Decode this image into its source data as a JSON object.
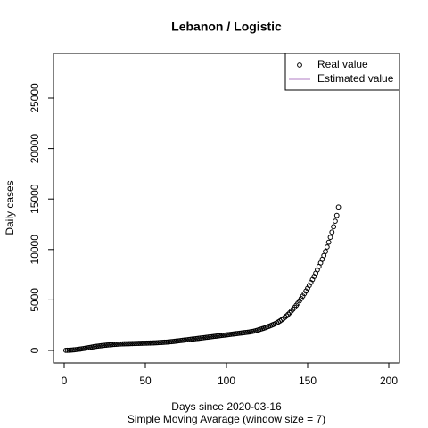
{
  "chart_data": {
    "type": "scatter",
    "title": "Lebanon / Logistic",
    "x_label": "Days since 2020-03-16",
    "subtitle": "Simple Moving Avarage (window size = 7)",
    "y_label": "Daily cases",
    "xlim": [
      -6.6,
      206.6
    ],
    "ylim": [
      -1237,
      29417
    ],
    "xticks": [
      0,
      50,
      100,
      150,
      200
    ],
    "yticks": [
      0,
      5000,
      10000,
      15000,
      20000,
      25000
    ],
    "legend_position": "topright",
    "legend": [
      {
        "label": "Real value",
        "marker": "circle",
        "color": "#000000"
      },
      {
        "label": "Estimated value",
        "marker": "line",
        "color": "#b07cc6"
      }
    ],
    "series": [
      {
        "name": "Real value",
        "color": "#000000",
        "x": [
          1,
          2,
          3,
          4,
          5,
          6,
          7,
          8,
          9,
          10,
          11,
          12,
          13,
          14,
          15,
          16,
          17,
          18,
          19,
          20,
          21,
          22,
          23,
          24,
          25,
          26,
          27,
          28,
          29,
          30,
          31,
          32,
          33,
          34,
          35,
          36,
          37,
          38,
          39,
          40,
          41,
          42,
          43,
          44,
          45,
          46,
          47,
          48,
          49,
          50,
          51,
          52,
          53,
          54,
          55,
          56,
          57,
          58,
          59,
          60,
          61,
          62,
          63,
          64,
          65,
          66,
          67,
          68,
          69,
          70,
          71,
          72,
          73,
          74,
          75,
          76,
          77,
          78,
          79,
          80,
          81,
          82,
          83,
          84,
          85,
          86,
          87,
          88,
          89,
          90,
          91,
          92,
          93,
          94,
          95,
          96,
          97,
          98,
          99,
          100,
          101,
          102,
          103,
          104,
          105,
          106,
          107,
          108,
          109,
          110,
          111,
          112,
          113,
          114,
          115,
          116,
          117,
          118,
          119,
          120,
          121,
          122,
          123,
          124,
          125,
          126,
          127,
          128,
          129,
          130,
          131,
          132,
          133,
          134,
          135,
          136,
          137,
          138,
          139,
          140,
          141,
          142,
          143,
          144,
          145,
          146,
          147,
          148,
          149,
          150,
          151,
          152,
          153,
          154,
          155,
          156,
          157,
          158,
          159,
          160,
          161,
          162,
          163,
          164,
          165,
          166,
          167,
          168,
          169
        ],
        "values": [
          10,
          15,
          20,
          30,
          45,
          60,
          80,
          100,
          120,
          140,
          165,
          190,
          215,
          240,
          270,
          300,
          330,
          360,
          390,
          410,
          430,
          450,
          470,
          490,
          510,
          525,
          540,
          555,
          570,
          585,
          600,
          610,
          620,
          630,
          640,
          650,
          655,
          660,
          665,
          670,
          675,
          680,
          685,
          690,
          695,
          700,
          705,
          710,
          715,
          720,
          725,
          730,
          735,
          740,
          745,
          750,
          760,
          770,
          780,
          790,
          800,
          810,
          820,
          835,
          850,
          865,
          880,
          900,
          920,
          940,
          960,
          980,
          1000,
          1020,
          1040,
          1060,
          1080,
          1100,
          1120,
          1140,
          1160,
          1180,
          1200,
          1220,
          1240,
          1260,
          1280,
          1300,
          1320,
          1340,
          1360,
          1380,
          1400,
          1420,
          1440,
          1460,
          1480,
          1500,
          1520,
          1540,
          1560,
          1580,
          1600,
          1620,
          1640,
          1660,
          1680,
          1700,
          1720,
          1740,
          1760,
          1780,
          1800,
          1820,
          1850,
          1880,
          1910,
          1950,
          2000,
          2050,
          2100,
          2150,
          2200,
          2260,
          2320,
          2380,
          2440,
          2510,
          2580,
          2650,
          2730,
          2820,
          2920,
          3030,
          3150,
          3280,
          3420,
          3570,
          3730,
          3900,
          4080,
          4270,
          4470,
          4680,
          4900,
          5130,
          5370,
          5620,
          5880,
          6150,
          6430,
          6720,
          7020,
          7330,
          7650,
          7980,
          8320,
          8670,
          9030,
          9400,
          9800,
          10250,
          10720,
          11210,
          11720,
          12250,
          12800,
          13370,
          14200
        ]
      }
    ]
  }
}
